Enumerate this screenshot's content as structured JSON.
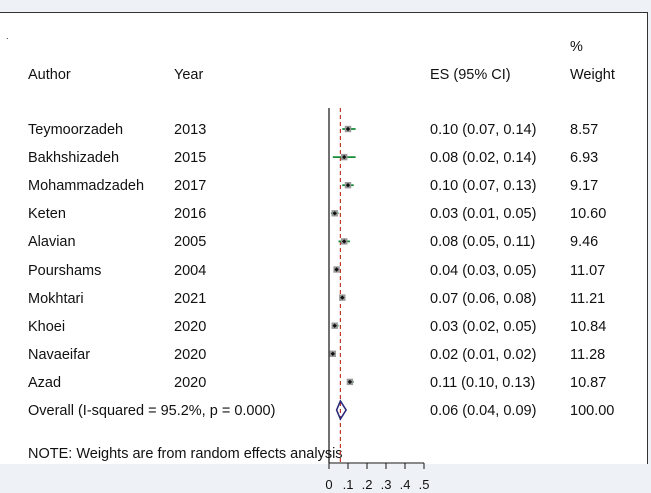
{
  "chart_data": {
    "type": "forest",
    "headers": {
      "author": "Author",
      "year": "Year",
      "es": "ES (95% CI)",
      "weight_line1": "%",
      "weight_line2": "Weight"
    },
    "studies": [
      {
        "author": "Teymoorzadeh",
        "year": "2013",
        "es": 0.1,
        "lo": 0.07,
        "hi": 0.14,
        "es_text": "0.10 (0.07, 0.14)",
        "weight": "8.57"
      },
      {
        "author": "Bakhshizadeh",
        "year": "2015",
        "es": 0.08,
        "lo": 0.02,
        "hi": 0.14,
        "es_text": "0.08 (0.02, 0.14)",
        "weight": "6.93"
      },
      {
        "author": "Mohammadzadeh",
        "year": "2017",
        "es": 0.1,
        "lo": 0.07,
        "hi": 0.13,
        "es_text": "0.10 (0.07, 0.13)",
        "weight": "9.17"
      },
      {
        "author": "Keten",
        "year": "2016",
        "es": 0.03,
        "lo": 0.01,
        "hi": 0.05,
        "es_text": "0.03 (0.01, 0.05)",
        "weight": "10.60"
      },
      {
        "author": "Alavian",
        "year": "2005",
        "es": 0.08,
        "lo": 0.05,
        "hi": 0.11,
        "es_text": "0.08 (0.05, 0.11)",
        "weight": "9.46"
      },
      {
        "author": "Pourshams",
        "year": "2004",
        "es": 0.04,
        "lo": 0.03,
        "hi": 0.05,
        "es_text": "0.04 (0.03, 0.05)",
        "weight": "11.07"
      },
      {
        "author": "Mokhtari",
        "year": "2021",
        "es": 0.07,
        "lo": 0.06,
        "hi": 0.08,
        "es_text": "0.07 (0.06, 0.08)",
        "weight": "11.21"
      },
      {
        "author": "Khoei",
        "year": "2020",
        "es": 0.03,
        "lo": 0.02,
        "hi": 0.05,
        "es_text": "0.03 (0.02, 0.05)",
        "weight": "10.84"
      },
      {
        "author": "Navaeifar",
        "year": "2020",
        "es": 0.02,
        "lo": 0.01,
        "hi": 0.02,
        "es_text": "0.02 (0.01, 0.02)",
        "weight": "11.28"
      },
      {
        "author": "Azad",
        "year": "2020",
        "es": 0.11,
        "lo": 0.1,
        "hi": 0.13,
        "es_text": "0.11 (0.10, 0.13)",
        "weight": "10.87"
      }
    ],
    "overall": {
      "label": "Overall  (I-squared = 95.2%, p = 0.000)",
      "es": 0.06,
      "lo": 0.04,
      "hi": 0.09,
      "es_text": "0.06 (0.04, 0.09)",
      "weight": "100.00"
    },
    "note": "NOTE: Weights are from random effects analysis",
    "x_ticks": [
      0,
      0.1,
      0.2,
      0.3,
      0.4,
      0.5
    ],
    "x_tick_labels": [
      "0",
      ".1",
      ".2",
      ".3",
      ".4",
      ".5"
    ],
    "xlim": [
      0,
      0.5
    ],
    "colors": {
      "ci_line": "#1a8a3a",
      "point": "#111111",
      "overall_line": "#c0392b",
      "diamond": "#2c2a7a",
      "axis": "#111111"
    }
  }
}
